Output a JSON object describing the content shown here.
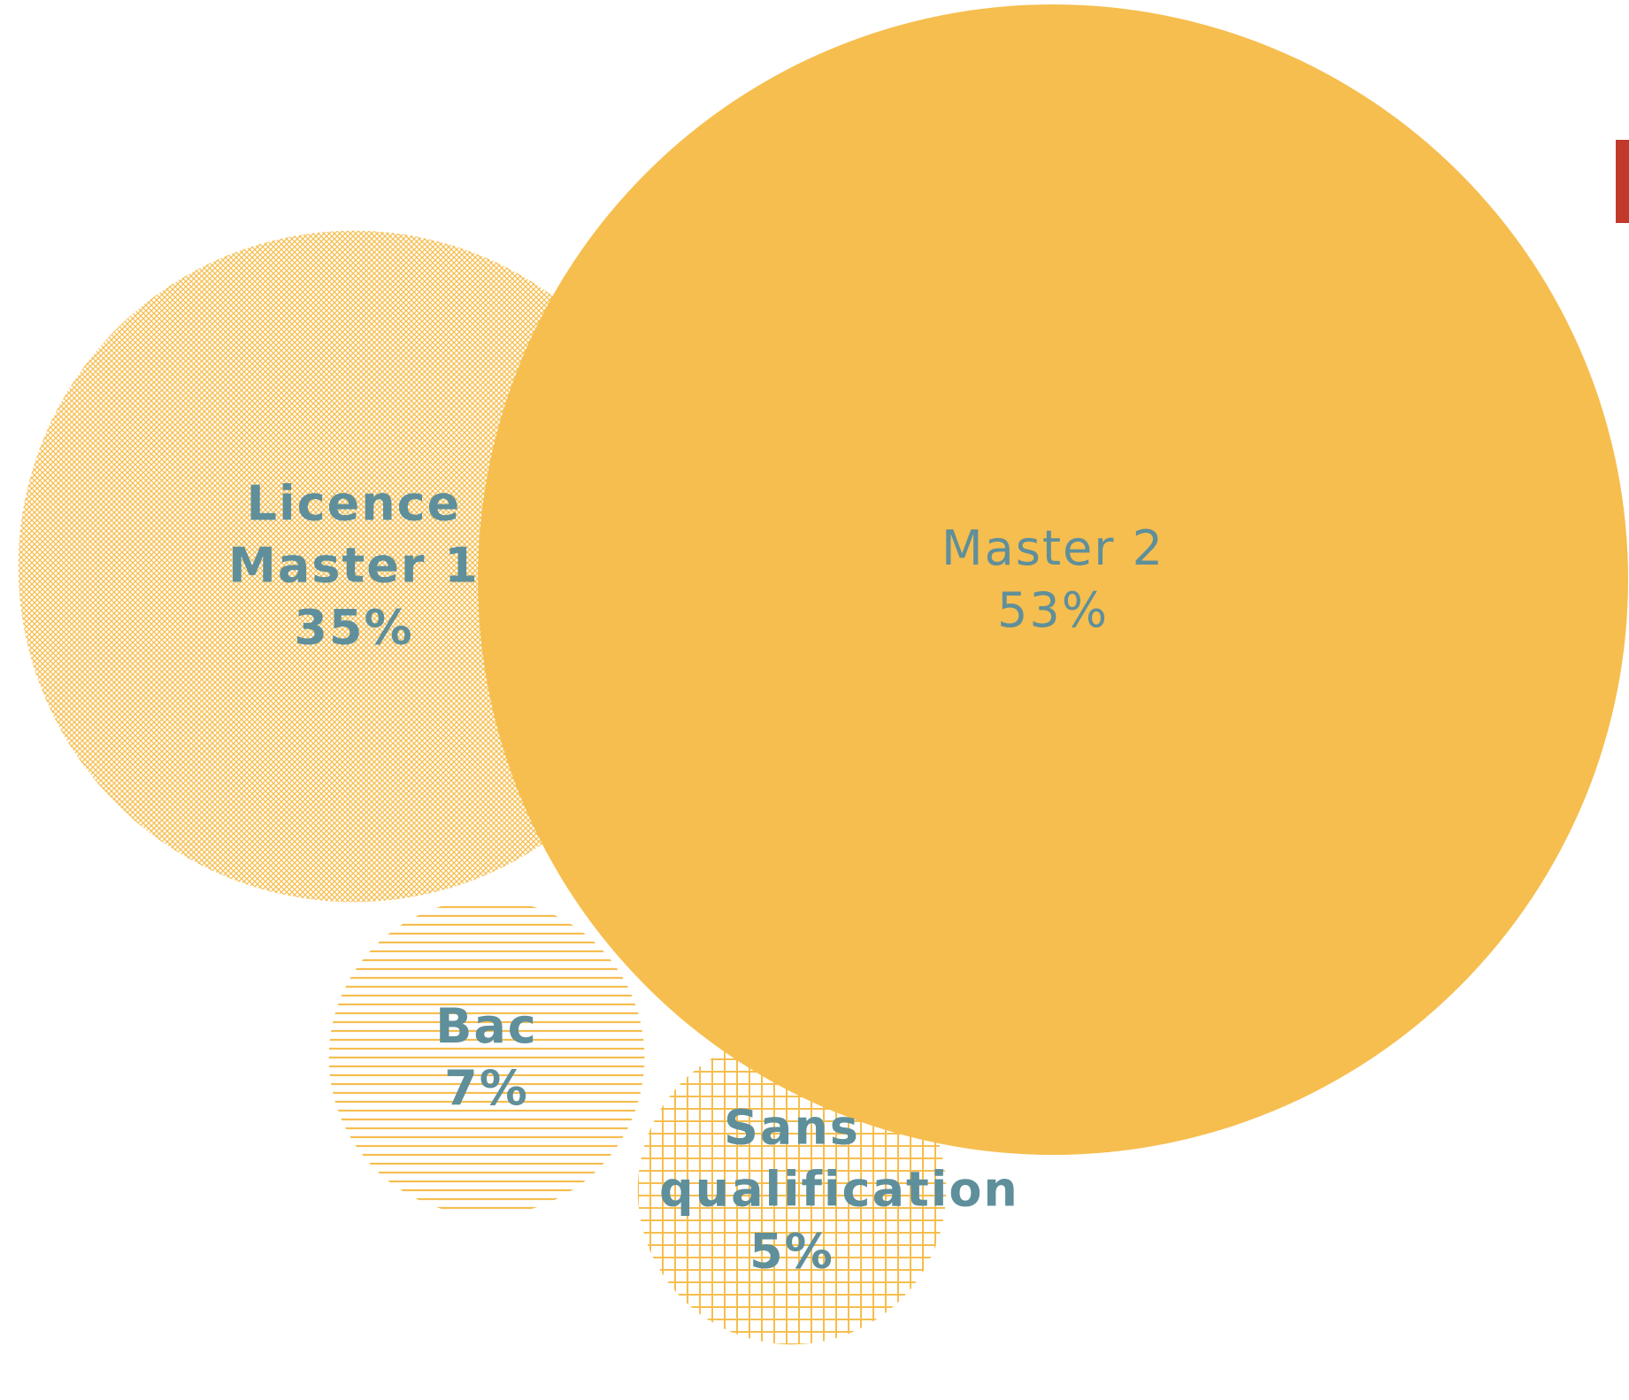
{
  "chart_data": {
    "type": "bubble",
    "categories": [
      "Master 2",
      "Licence Master 1",
      "Bac",
      "Sans qualification"
    ],
    "values": [
      53,
      35,
      7,
      5
    ],
    "value_labels": [
      "53%",
      "35%",
      "7%",
      "5%"
    ],
    "color": "#f6be4f",
    "label_color": "#5f8f9a"
  }
}
